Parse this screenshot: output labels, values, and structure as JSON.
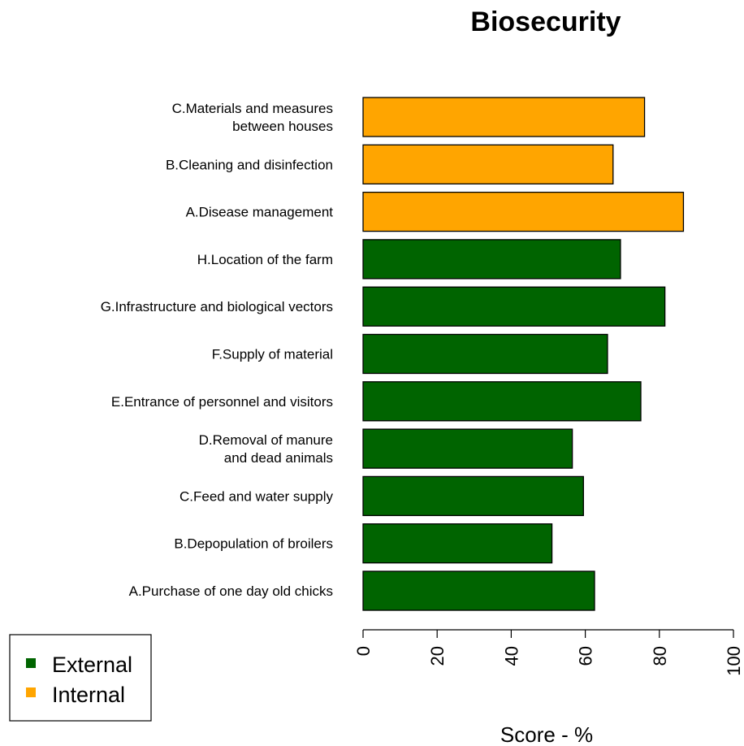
{
  "chart_data": {
    "type": "bar",
    "orientation": "horizontal",
    "title": "Biosecurity",
    "xlabel": "Score - %",
    "ylabel": "",
    "xlim": [
      0,
      100
    ],
    "xticks": [
      "0",
      "20",
      "40",
      "60",
      "80",
      "100"
    ],
    "grid": false,
    "categories": [
      "A.Purchase of one day old chicks",
      "B.Depopulation of broilers",
      "C.Feed and water supply",
      "D.Removal of manure\nand dead animals",
      "E.Entrance of personnel and visitors",
      "F.Supply of material",
      "G.Infrastructure and biological vectors",
      "H.Location of the farm",
      "A.Disease management",
      "B.Cleaning and disinfection",
      "C.Materials and measures\nbetween houses"
    ],
    "values": [
      62.5,
      51,
      59.5,
      56.5,
      75,
      66,
      81.5,
      69.5,
      86.5,
      67.5,
      76
    ],
    "groups": [
      "External",
      "External",
      "External",
      "External",
      "External",
      "External",
      "External",
      "External",
      "Internal",
      "Internal",
      "Internal"
    ],
    "legend": {
      "position": "bottom-left",
      "entries": [
        {
          "name": "External",
          "color": "#006400"
        },
        {
          "name": "Internal",
          "color": "#FFA500"
        }
      ]
    }
  }
}
